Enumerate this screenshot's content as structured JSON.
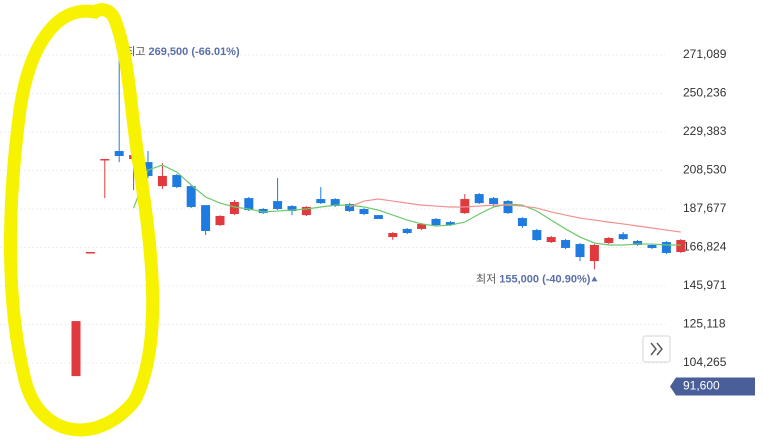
{
  "chart_data": {
    "type": "candlestick",
    "up_color": "#e0393e",
    "down_color": "#1e7be0",
    "ylim": [
      58800,
      300900
    ],
    "yticks": [
      {
        "value": 104265,
        "label": "104,265"
      },
      {
        "value": 125118,
        "label": "125,118"
      },
      {
        "value": 145971,
        "label": "145,971"
      },
      {
        "value": 166824,
        "label": "166,824"
      },
      {
        "value": 187677,
        "label": "187,677"
      },
      {
        "value": 208530,
        "label": "208,530"
      },
      {
        "value": 229383,
        "label": "229,383"
      },
      {
        "value": 250236,
        "label": "250,236"
      },
      {
        "value": 271089,
        "label": "271,089"
      }
    ],
    "grid": true,
    "open": [
      97200,
      164300,
      214500,
      219100,
      214800,
      213100,
      200100,
      206100,
      200100,
      189800,
      179000,
      185000,
      193600,
      187700,
      192000,
      189300,
      184400,
      193100,
      193100,
      190400,
      187700,
      184400,
      172500,
      176900,
      176900,
      182300,
      180600,
      185500,
      195800,
      193600,
      192000,
      182800,
      176300,
      169800,
      170900,
      168700,
      159500,
      169300,
      174100,
      170400,
      168200,
      169800,
      164400
    ],
    "high": [
      127000,
      164400,
      214800,
      269500,
      224500,
      219100,
      212600,
      206600,
      200600,
      189800,
      184400,
      192600,
      194200,
      188200,
      204500,
      189800,
      189300,
      199600,
      193600,
      191000,
      188200,
      184400,
      175200,
      177400,
      180100,
      182800,
      181200,
      195800,
      196300,
      194200,
      192600,
      183300,
      176900,
      173100,
      171400,
      169300,
      168700,
      172500,
      175200,
      170900,
      168700,
      170400,
      171400
    ],
    "low": [
      97200,
      164300,
      193600,
      213100,
      198000,
      204500,
      198500,
      199000,
      188200,
      173600,
      178500,
      184400,
      186600,
      185000,
      187100,
      184400,
      183900,
      190400,
      188800,
      186100,
      184400,
      182300,
      171000,
      174100,
      176300,
      178500,
      178500,
      185000,
      190400,
      188800,
      185000,
      177400,
      170400,
      169300,
      166000,
      159500,
      155000,
      168700,
      170900,
      167700,
      166000,
      163300,
      163900
    ],
    "close": [
      127000,
      164400,
      214800,
      216400,
      216900,
      205600,
      205600,
      199600,
      188800,
      175800,
      183900,
      191500,
      187100,
      185500,
      187700,
      186600,
      188800,
      190900,
      189300,
      186600,
      185000,
      182300,
      174700,
      174700,
      179600,
      179000,
      179000,
      193100,
      190900,
      190400,
      185500,
      178500,
      170900,
      172500,
      166600,
      161700,
      168200,
      172000,
      171400,
      168200,
      166600,
      163900,
      170900
    ],
    "series": [
      {
        "color": "#6dc96d",
        "values": [
          null,
          null,
          null,
          null,
          188200,
          208800,
          211500,
          207700,
          200700,
          194200,
          190900,
          188800,
          187700,
          186100,
          186600,
          187100,
          187700,
          188800,
          189800,
          189800,
          188800,
          187100,
          184400,
          181700,
          179600,
          178500,
          179000,
          180600,
          185000,
          188800,
          190400,
          189800,
          186600,
          181700,
          176900,
          172500,
          169300,
          168200,
          168200,
          168700,
          168700,
          168200,
          168200
        ]
      },
      {
        "color": "#f0908f",
        "values": [
          null,
          null,
          null,
          null,
          null,
          null,
          null,
          null,
          null,
          null,
          null,
          null,
          null,
          null,
          null,
          null,
          null,
          null,
          null,
          188800,
          192000,
          193100,
          192000,
          190900,
          189800,
          189300,
          188800,
          188800,
          189300,
          189800,
          189800,
          189300,
          188200,
          186100,
          184400,
          182800,
          181700,
          180600,
          179600,
          178500,
          177400,
          176300,
          175200
        ]
      }
    ],
    "annotations": [
      {
        "label": "최고",
        "value": 269500,
        "value_label": "269,500",
        "change": "(-66.01%)"
      },
      {
        "label": "최저",
        "value": 155000,
        "value_label": "155,000",
        "change": "(-40.90%)"
      }
    ],
    "current_price": {
      "value": 91600,
      "label": "91,600"
    }
  }
}
